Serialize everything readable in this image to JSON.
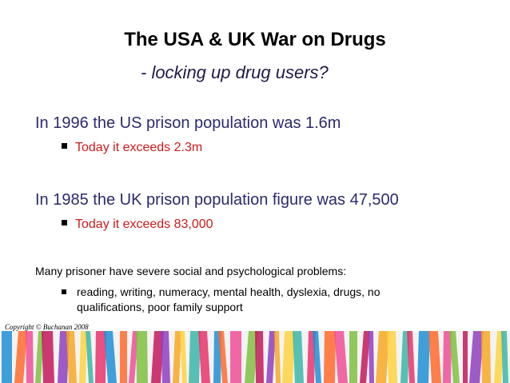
{
  "slide": {
    "title": "The USA & UK War on Drugs",
    "subtitle": "- locking up drug users?",
    "points": [
      {
        "text": "In 1996 the US prison population was 1.6m",
        "sub": "Today it exceeds 2.3m"
      },
      {
        "text": "In 1985 the UK prison population figure was 47,500",
        "sub": "Today it exceeds 83,000"
      }
    ],
    "note": "Many prisoner have severe social and psychological problems:",
    "note_sub": "reading, writing, numeracy, mental health, dyslexia, drugs, no qualifications, poor family support",
    "copyright": "Copyright © Buchanan 2008"
  },
  "decor": {
    "band_colors": [
      "#e8336b",
      "#f7a823",
      "#7fbf3f",
      "#1e8fd6",
      "#ffd23f",
      "#c2185b",
      "#ff6a2b",
      "#3bb6a8",
      "#8e3fbf",
      "#f04e98"
    ]
  }
}
